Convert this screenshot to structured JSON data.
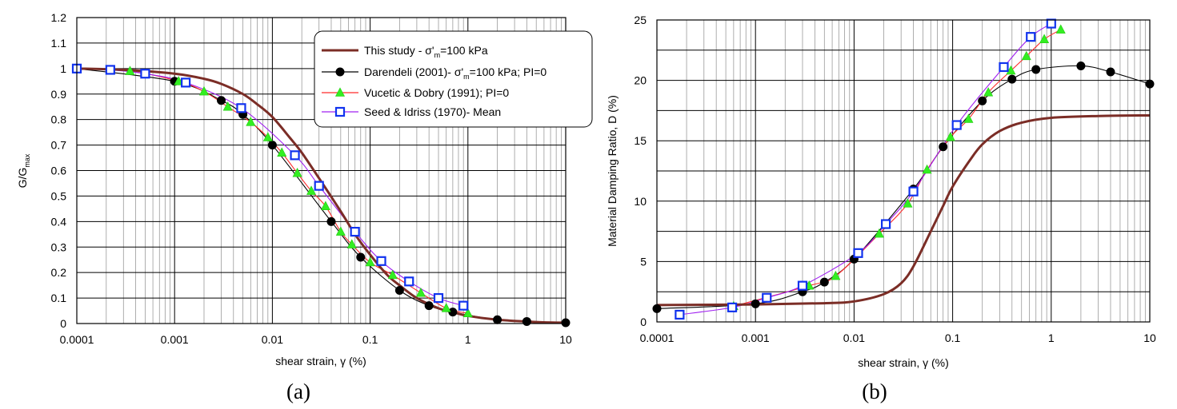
{
  "chart_data": [
    {
      "type": "line",
      "panel_label": "(a)",
      "xlabel": "shear strain, γ (%)",
      "ylabel": "G/G",
      "ylabel_sub": "max",
      "xscale": "log",
      "xlim": [
        0.0001,
        10
      ],
      "ylim": [
        0,
        1.2
      ],
      "xticks": [
        "0.0001",
        "0.001",
        "0.01",
        "0.1",
        "1",
        "10"
      ],
      "yticks": [
        "0",
        "0.1",
        "0.2",
        "0.3",
        "0.4",
        "0.5",
        "0.6",
        "0.7",
        "0.8",
        "0.9",
        "1",
        "1.1",
        "1.2"
      ],
      "grid": true,
      "legend_position": "top-right",
      "series": [
        {
          "name": "This study - σ'm=100 kPa",
          "color": "#7b2d26",
          "marker": "none",
          "x": [
            0.0001,
            0.0003,
            0.001,
            0.002,
            0.003,
            0.005,
            0.007,
            0.01,
            0.015,
            0.02,
            0.03,
            0.05,
            0.07,
            0.1,
            0.15,
            0.2,
            0.3,
            0.5,
            0.7,
            1,
            2,
            5,
            10
          ],
          "y": [
            1.0,
            0.995,
            0.98,
            0.96,
            0.94,
            0.9,
            0.86,
            0.81,
            0.73,
            0.67,
            0.57,
            0.44,
            0.35,
            0.27,
            0.19,
            0.15,
            0.1,
            0.06,
            0.045,
            0.03,
            0.015,
            0.006,
            0.003
          ]
        },
        {
          "name": "Darendeli (2001)- σ'm=100 kPa; PI=0",
          "color": "#000000",
          "marker": "circle",
          "x": [
            0.0001,
            0.001,
            0.003,
            0.005,
            0.01,
            0.04,
            0.08,
            0.2,
            0.4,
            0.7,
            2,
            4,
            10
          ],
          "y": [
            1.0,
            0.95,
            0.875,
            0.82,
            0.7,
            0.4,
            0.26,
            0.13,
            0.07,
            0.045,
            0.015,
            0.008,
            0.003
          ]
        },
        {
          "name": "Vucetic & Dobry (1991); PI=0",
          "color": "#ff2a2a",
          "marker": "triangle",
          "x": [
            0.0001,
            0.00035,
            0.0011,
            0.002,
            0.0035,
            0.006,
            0.009,
            0.0125,
            0.018,
            0.025,
            0.035,
            0.05,
            0.065,
            0.1,
            0.17,
            0.33,
            0.6,
            1.0
          ],
          "y": [
            1.0,
            0.99,
            0.95,
            0.91,
            0.85,
            0.79,
            0.73,
            0.67,
            0.59,
            0.52,
            0.46,
            0.36,
            0.31,
            0.24,
            0.19,
            0.12,
            0.06,
            0.04
          ]
        },
        {
          "name": "Seed & Idriss (1970)- Mean",
          "color": "#a020f0",
          "marker": "square",
          "x": [
            0.0001,
            0.00022,
            0.0005,
            0.0013,
            0.0048,
            0.017,
            0.03,
            0.07,
            0.13,
            0.25,
            0.5,
            0.9
          ],
          "y": [
            1.0,
            0.995,
            0.98,
            0.945,
            0.845,
            0.66,
            0.54,
            0.36,
            0.245,
            0.165,
            0.1,
            0.07
          ]
        }
      ]
    },
    {
      "type": "line",
      "panel_label": "(b)",
      "xlabel": "shear strain, γ (%)",
      "ylabel": "Material Damping Ratio, D (%)",
      "xscale": "log",
      "xlim": [
        0.0001,
        10
      ],
      "ylim": [
        0,
        25
      ],
      "xticks": [
        "0.0001",
        "0.001",
        "0.01",
        "0.1",
        "1",
        "10"
      ],
      "yticks": [
        "0",
        "5",
        "10",
        "15",
        "20",
        "25"
      ],
      "grid": true,
      "series": [
        {
          "name": "This study - σ'm=100 kPa",
          "color": "#7b2d26",
          "marker": "none",
          "x": [
            0.0001,
            0.001,
            0.005,
            0.01,
            0.02,
            0.03,
            0.04,
            0.06,
            0.08,
            0.1,
            0.15,
            0.2,
            0.3,
            0.5,
            1,
            3,
            10
          ],
          "y": [
            1.4,
            1.45,
            1.55,
            1.7,
            2.3,
            3.2,
            4.6,
            7.5,
            9.6,
            11.2,
            13.4,
            14.7,
            15.8,
            16.5,
            16.9,
            17.05,
            17.1
          ]
        },
        {
          "name": "Darendeli (2001)- σ'm=100 kPa; PI=0",
          "color": "#000000",
          "marker": "circle",
          "x": [
            0.0001,
            0.001,
            0.003,
            0.005,
            0.01,
            0.04,
            0.08,
            0.2,
            0.4,
            0.7,
            2,
            4,
            10
          ],
          "y": [
            1.1,
            1.5,
            2.5,
            3.3,
            5.2,
            11.0,
            14.5,
            18.3,
            20.1,
            20.9,
            21.2,
            20.7,
            19.7
          ]
        },
        {
          "name": "Vucetic & Dobry (1991); PI=0",
          "color": "#ff2a2a",
          "marker": "triangle",
          "x": [
            0.0006,
            0.0035,
            0.0065,
            0.018,
            0.035,
            0.055,
            0.095,
            0.145,
            0.23,
            0.39,
            0.56,
            0.85,
            1.25
          ],
          "y": [
            1.3,
            3.0,
            3.8,
            7.3,
            9.8,
            12.6,
            15.3,
            16.8,
            19.0,
            20.8,
            22.0,
            23.4,
            24.2
          ]
        },
        {
          "name": "Seed & Idriss (1970)- Mean",
          "color": "#a020f0",
          "marker": "square",
          "x": [
            0.00017,
            0.00058,
            0.0013,
            0.003,
            0.011,
            0.021,
            0.04,
            0.11,
            0.33,
            0.62,
            1.0
          ],
          "y": [
            0.6,
            1.2,
            2.0,
            3.0,
            5.7,
            8.1,
            10.8,
            16.3,
            21.1,
            23.6,
            24.7
          ]
        }
      ]
    }
  ]
}
